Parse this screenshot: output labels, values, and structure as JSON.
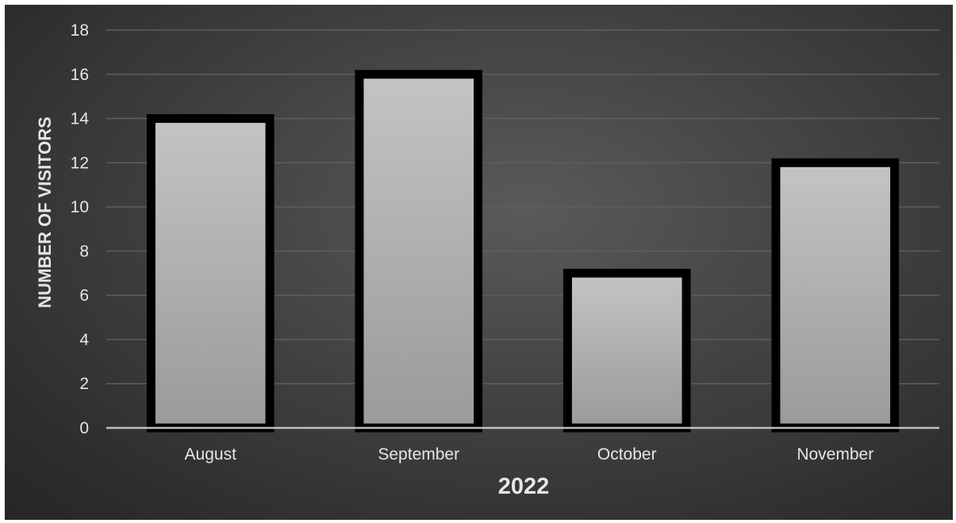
{
  "chart_data": {
    "type": "bar",
    "categories": [
      "August",
      "September",
      "October",
      "November"
    ],
    "values": [
      14,
      16,
      7,
      12
    ],
    "xlabel": "2022",
    "ylabel": "NUMBER OF VISITORS",
    "ylim": [
      0,
      18
    ],
    "yticks": [
      0,
      2,
      4,
      6,
      8,
      10,
      12,
      14,
      16,
      18
    ],
    "grid": true,
    "legend": "none",
    "colors": {
      "bar_fill_top": "#c4c4c4",
      "bar_fill_bottom": "#9a9a9a",
      "bar_stroke": "#000000",
      "gridline": "#5e5e5e",
      "axis_line": "#bfbfbf",
      "text": "#e6e6e6"
    }
  }
}
